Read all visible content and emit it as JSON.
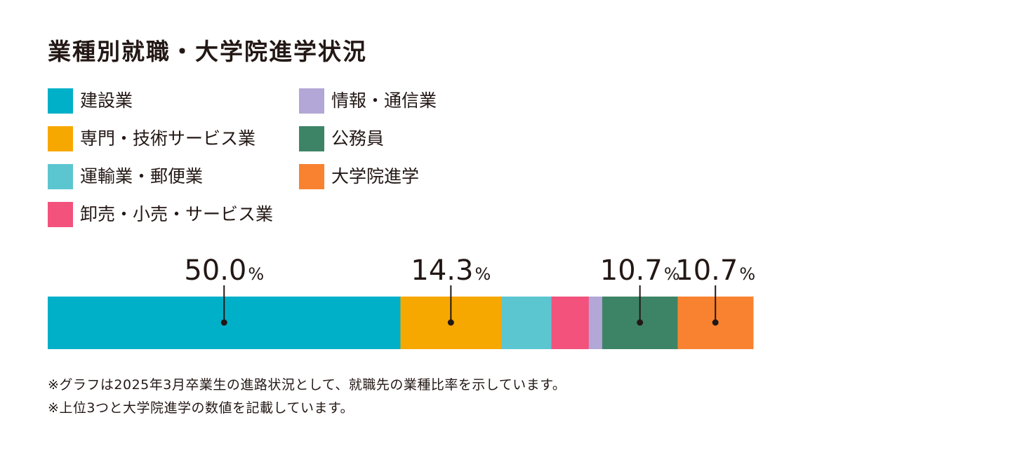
{
  "title": "業種別就職・大学院進学状況",
  "colors": {
    "text": "#231815",
    "marker": "#231815"
  },
  "chart_data": {
    "type": "bar",
    "stacked": true,
    "orientation": "horizontal",
    "unit": "%",
    "total": 100,
    "series": [
      {
        "name": "建設業",
        "value": 50.0,
        "color": "#00B0C8",
        "label": "50.0",
        "show_label": true
      },
      {
        "name": "専門・技術サービス業",
        "value": 14.3,
        "color": "#F7A800",
        "label": "14.3",
        "show_label": true
      },
      {
        "name": "運輸業・郵便業",
        "value": 7.1,
        "color": "#5CC6D0",
        "label": "",
        "show_label": false
      },
      {
        "name": "卸売・小売・サービス業",
        "value": 5.3,
        "color": "#F2527C",
        "label": "",
        "show_label": false
      },
      {
        "name": "情報・通信業",
        "value": 1.9,
        "color": "#B2A7D6",
        "label": "",
        "show_label": false
      },
      {
        "name": "公務員",
        "value": 10.7,
        "color": "#3D8466",
        "label": "10.7",
        "show_label": true
      },
      {
        "name": "大学院進学",
        "value": 10.7,
        "color": "#F98230",
        "label": "10.7",
        "show_label": true
      }
    ],
    "legend_order": [
      "建設業",
      "情報・通信業",
      "専門・技術サービス業",
      "公務員",
      "運輸業・郵便業",
      "大学院進学",
      "卸売・小売・サービス業"
    ]
  },
  "notes": [
    "※グラフは2025年3月卒業生の進路状況として、就職先の業種比率を示しています。",
    "※上位3つと大学院進学の数値を記載しています。"
  ]
}
